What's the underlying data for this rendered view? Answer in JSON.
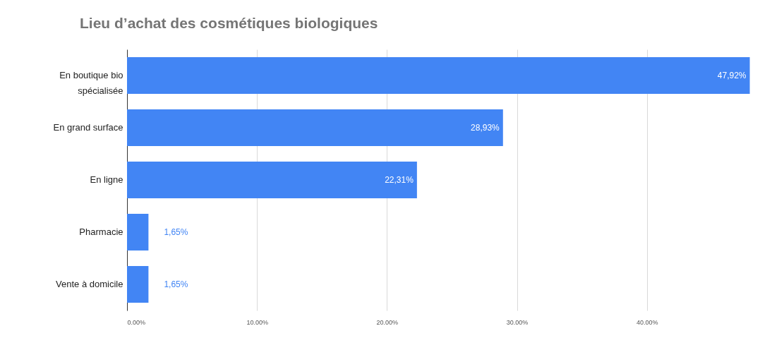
{
  "chart_data": {
    "type": "bar",
    "orientation": "horizontal",
    "title": "Lieu d’achat des cosmétiques biologiques",
    "categories": [
      "En boutique bio spécialisée",
      "En grand surface",
      "En ligne",
      "Pharmacie",
      "Vente à domicile"
    ],
    "values": [
      47.92,
      28.93,
      22.31,
      1.65,
      1.65
    ],
    "value_labels": [
      "47,92%",
      "28,93%",
      "22,31%",
      "1,65%",
      "1,65%"
    ],
    "color": "#4285f4",
    "xlim": [
      0,
      48
    ],
    "xticks": [
      {
        "value": 0,
        "label": "0.00%"
      },
      {
        "value": 10,
        "label": "10.00%"
      },
      {
        "value": 20,
        "label": "20.00%"
      },
      {
        "value": 30,
        "label": "30.00%"
      },
      {
        "value": 40,
        "label": "40.00%"
      }
    ],
    "grid": "x"
  }
}
